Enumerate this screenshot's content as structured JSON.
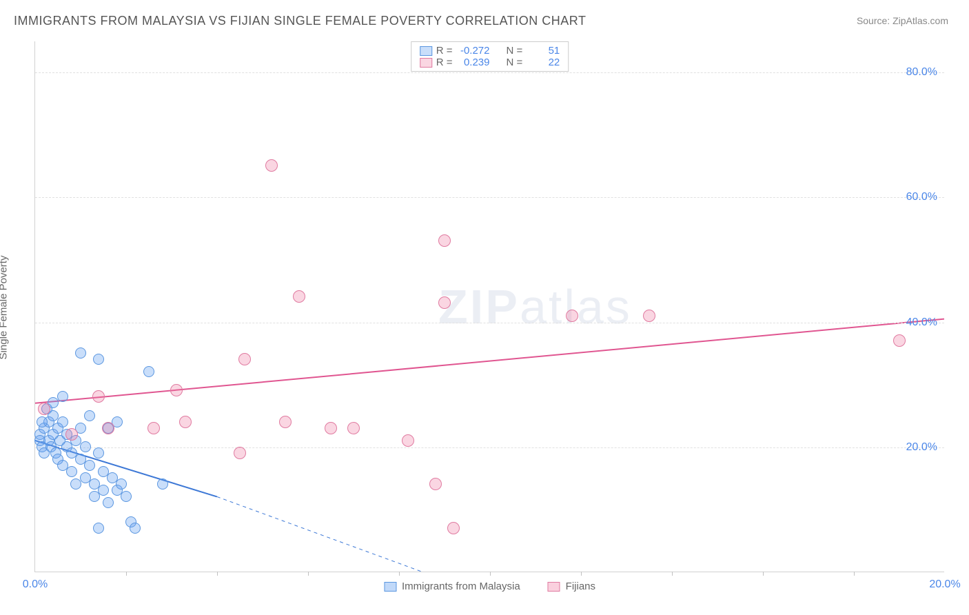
{
  "title": "IMMIGRANTS FROM MALAYSIA VS FIJIAN SINGLE FEMALE POVERTY CORRELATION CHART",
  "source": "Source: ZipAtlas.com",
  "watermark_bold": "ZIP",
  "watermark_light": "atlas",
  "chart": {
    "type": "scatter",
    "ylabel": "Single Female Poverty",
    "x_range": [
      0,
      20
    ],
    "y_range": [
      0,
      85
    ],
    "y_ticks": [
      {
        "v": 20,
        "label": "20.0%"
      },
      {
        "v": 40,
        "label": "40.0%"
      },
      {
        "v": 60,
        "label": "60.0%"
      },
      {
        "v": 80,
        "label": "80.0%"
      }
    ],
    "x_ticks": [
      {
        "v": 0,
        "label": "0.0%"
      },
      {
        "v": 20,
        "label": "20.0%"
      }
    ],
    "x_minor_ticks": [
      2,
      4,
      6,
      8,
      10,
      12,
      14,
      16,
      18
    ],
    "grid_color": "#e0e0e0",
    "background_color": "#ffffff",
    "text_color": "#666666",
    "tick_label_color": "#4a86e8",
    "series": [
      {
        "name": "Immigrants from Malaysia",
        "fill_color": "rgba(100,160,240,0.35)",
        "stroke_color": "#5a96e0",
        "marker_radius": 8,
        "R": "-0.272",
        "N": "51",
        "trend": {
          "x1": 0,
          "y1": 21,
          "x2_solid": 4,
          "y2_solid": 12,
          "x2": 8.5,
          "y2": 0,
          "color": "#3d78d6",
          "width": 2
        },
        "points": [
          {
            "x": 0.1,
            "y": 22
          },
          {
            "x": 0.1,
            "y": 21
          },
          {
            "x": 0.15,
            "y": 20
          },
          {
            "x": 0.2,
            "y": 23
          },
          {
            "x": 0.2,
            "y": 19
          },
          {
            "x": 0.25,
            "y": 26
          },
          {
            "x": 0.3,
            "y": 24
          },
          {
            "x": 0.3,
            "y": 21
          },
          {
            "x": 0.35,
            "y": 20
          },
          {
            "x": 0.4,
            "y": 22
          },
          {
            "x": 0.4,
            "y": 25
          },
          {
            "x": 0.45,
            "y": 19
          },
          {
            "x": 0.5,
            "y": 23
          },
          {
            "x": 0.5,
            "y": 18
          },
          {
            "x": 0.55,
            "y": 21
          },
          {
            "x": 0.6,
            "y": 24
          },
          {
            "x": 0.6,
            "y": 17
          },
          {
            "x": 0.7,
            "y": 20
          },
          {
            "x": 0.7,
            "y": 22
          },
          {
            "x": 0.8,
            "y": 19
          },
          {
            "x": 0.8,
            "y": 16
          },
          {
            "x": 0.9,
            "y": 21
          },
          {
            "x": 0.9,
            "y": 14
          },
          {
            "x": 1.0,
            "y": 18
          },
          {
            "x": 1.0,
            "y": 23
          },
          {
            "x": 1.1,
            "y": 15
          },
          {
            "x": 1.1,
            "y": 20
          },
          {
            "x": 1.2,
            "y": 17
          },
          {
            "x": 1.3,
            "y": 14
          },
          {
            "x": 1.3,
            "y": 12
          },
          {
            "x": 1.4,
            "y": 19
          },
          {
            "x": 1.5,
            "y": 13
          },
          {
            "x": 1.5,
            "y": 16
          },
          {
            "x": 1.6,
            "y": 11
          },
          {
            "x": 1.7,
            "y": 15
          },
          {
            "x": 1.8,
            "y": 13
          },
          {
            "x": 1.9,
            "y": 14
          },
          {
            "x": 2.0,
            "y": 12
          },
          {
            "x": 2.1,
            "y": 8
          },
          {
            "x": 2.2,
            "y": 7
          },
          {
            "x": 1.0,
            "y": 35
          },
          {
            "x": 1.4,
            "y": 34
          },
          {
            "x": 2.5,
            "y": 32
          },
          {
            "x": 2.8,
            "y": 14
          },
          {
            "x": 1.2,
            "y": 25
          },
          {
            "x": 0.6,
            "y": 28
          },
          {
            "x": 0.4,
            "y": 27
          },
          {
            "x": 1.6,
            "y": 23
          },
          {
            "x": 1.8,
            "y": 24
          },
          {
            "x": 1.4,
            "y": 7
          },
          {
            "x": 0.15,
            "y": 24
          }
        ]
      },
      {
        "name": "Fijians",
        "fill_color": "rgba(240,120,160,0.30)",
        "stroke_color": "#e07aa0",
        "marker_radius": 9,
        "R": "0.239",
        "N": "22",
        "trend": {
          "x1": 0,
          "y1": 27,
          "x2_solid": 20,
          "y2_solid": 40.5,
          "x2": 20,
          "y2": 40.5,
          "color": "#e05590",
          "width": 2
        },
        "points": [
          {
            "x": 0.2,
            "y": 26
          },
          {
            "x": 0.8,
            "y": 22
          },
          {
            "x": 1.4,
            "y": 28
          },
          {
            "x": 1.6,
            "y": 23
          },
          {
            "x": 2.6,
            "y": 23
          },
          {
            "x": 3.1,
            "y": 29
          },
          {
            "x": 3.3,
            "y": 24
          },
          {
            "x": 4.5,
            "y": 19
          },
          {
            "x": 4.6,
            "y": 34
          },
          {
            "x": 5.2,
            "y": 65
          },
          {
            "x": 5.5,
            "y": 24
          },
          {
            "x": 5.8,
            "y": 44
          },
          {
            "x": 6.5,
            "y": 23
          },
          {
            "x": 7.0,
            "y": 23
          },
          {
            "x": 8.2,
            "y": 21
          },
          {
            "x": 9.0,
            "y": 53
          },
          {
            "x": 9.0,
            "y": 43
          },
          {
            "x": 9.2,
            "y": 7
          },
          {
            "x": 8.8,
            "y": 14
          },
          {
            "x": 11.8,
            "y": 41
          },
          {
            "x": 13.5,
            "y": 41
          },
          {
            "x": 19.0,
            "y": 37
          }
        ]
      }
    ]
  },
  "legend_bottom": [
    {
      "label": "Immigrants from Malaysia",
      "fill": "rgba(100,160,240,0.4)",
      "stroke": "#5a96e0"
    },
    {
      "label": "Fijians",
      "fill": "rgba(240,120,160,0.35)",
      "stroke": "#e07aa0"
    }
  ],
  "legend_top_labels": {
    "R": "R =",
    "N": "N ="
  }
}
